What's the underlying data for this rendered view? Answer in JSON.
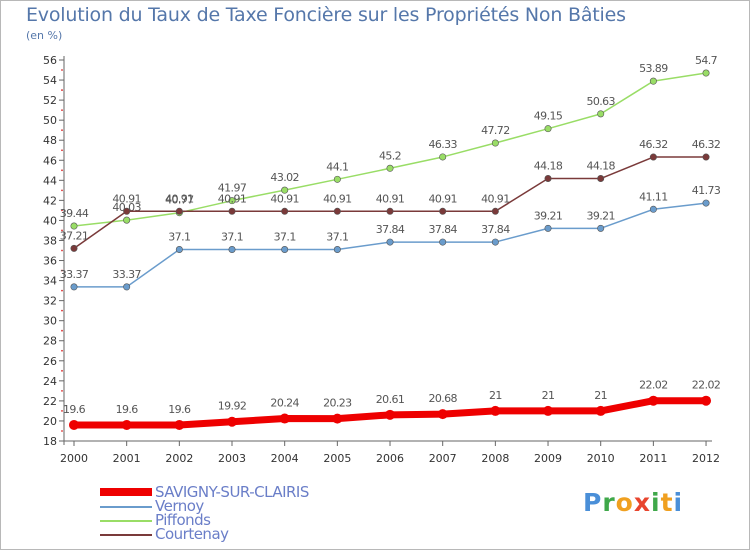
{
  "title": "Evolution du Taux de Taxe Foncière sur les Propriétés Non Bâties",
  "unit_label": "(en %)",
  "logo": {
    "text": "Proxiti",
    "letter_colors": [
      "#4a8fd8",
      "#3fa84a",
      "#f0a020",
      "#e8452e",
      "#3fa84a",
      "#f0a020",
      "#4a8fd8"
    ]
  },
  "chart_data": {
    "type": "line",
    "x": [
      "2000",
      "2001",
      "2002",
      "2003",
      "2004",
      "2005",
      "2006",
      "2007",
      "2008",
      "2009",
      "2010",
      "2011",
      "2012"
    ],
    "ylim": [
      18,
      56
    ],
    "yticks": [
      18,
      20,
      22,
      24,
      26,
      28,
      30,
      32,
      34,
      36,
      38,
      40,
      42,
      44,
      46,
      48,
      50,
      52,
      54,
      56
    ],
    "grid": false,
    "legend_position": "bottom-left",
    "series": [
      {
        "name": "SAVIGNY-SUR-CLAIRIS",
        "color": "#ee0000",
        "width": 7,
        "values": [
          19.6,
          19.6,
          19.6,
          19.92,
          20.24,
          20.23,
          20.61,
          20.68,
          21,
          21,
          21,
          22.02,
          22.02
        ],
        "labels": [
          "19.6",
          "19.6",
          "19.6",
          "19.92",
          "20.24",
          "20.23",
          "20.61",
          "20.68",
          "21",
          "21",
          "21",
          "22.02",
          "22.02"
        ]
      },
      {
        "name": "Vernoy",
        "color": "#6a9ccc",
        "width": 1.5,
        "values": [
          33.37,
          33.37,
          37.1,
          37.1,
          37.1,
          37.1,
          37.84,
          37.84,
          37.84,
          39.21,
          39.21,
          41.11,
          41.73
        ],
        "labels": [
          "33.37",
          "33.37",
          "37.1",
          "37.1",
          "37.1",
          "37.1",
          "37.84",
          "37.84",
          "37.84",
          "39.21",
          "39.21",
          "41.11",
          "41.73"
        ]
      },
      {
        "name": "Piffonds",
        "color": "#99dd66",
        "width": 1.5,
        "values": [
          39.44,
          40.03,
          40.77,
          41.97,
          43.02,
          44.1,
          45.2,
          46.33,
          47.72,
          49.15,
          50.63,
          53.89,
          54.7
        ],
        "labels": [
          "39.44",
          "40.03",
          "40.77",
          "41.97",
          "43.02",
          "44.1",
          "45.2",
          "46.33",
          "47.72",
          "49.15",
          "50.63",
          "53.89",
          "54.7"
        ]
      },
      {
        "name": "Courtenay",
        "color": "#7a3a3a",
        "width": 1.5,
        "values": [
          37.21,
          40.91,
          40.91,
          40.91,
          40.91,
          40.91,
          40.91,
          40.91,
          40.91,
          44.18,
          44.18,
          46.32,
          46.32
        ],
        "labels": [
          "37.21",
          "40.91",
          "40.91",
          "40.91",
          "40.91",
          "40.91",
          "40.91",
          "40.91",
          "40.91",
          "44.18",
          "44.18",
          "46.32",
          "46.32"
        ]
      }
    ]
  }
}
